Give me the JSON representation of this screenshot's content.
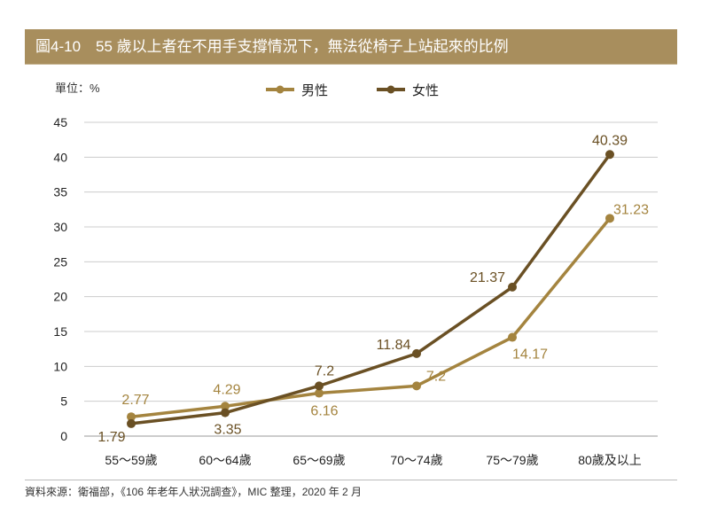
{
  "title": "圖4-10　55 歲以上者在不用手支撐情況下，無法從椅子上站起來的比例",
  "source": "資料來源：衛福部，《106 年老年人狀況調查》，MIC 整理，2020 年 2 月",
  "chart_data": {
    "type": "line",
    "unit_label": "單位：%",
    "categories": [
      "55～59歲",
      "60～64歲",
      "65～69歲",
      "70～74歲",
      "75～79歲",
      "80歲及以上"
    ],
    "ylim": [
      0,
      45
    ],
    "yticks": [
      0,
      5,
      10,
      15,
      20,
      25,
      30,
      35,
      40,
      45
    ],
    "grid": true,
    "legend": "top-center",
    "series": [
      {
        "name": "男性",
        "color": "#a4843f",
        "values": [
          2.77,
          4.29,
          6.16,
          7.2,
          14.17,
          31.23
        ]
      },
      {
        "name": "女性",
        "color": "#6a5024",
        "values": [
          1.79,
          3.35,
          7.2,
          11.84,
          21.37,
          40.39
        ]
      }
    ]
  }
}
